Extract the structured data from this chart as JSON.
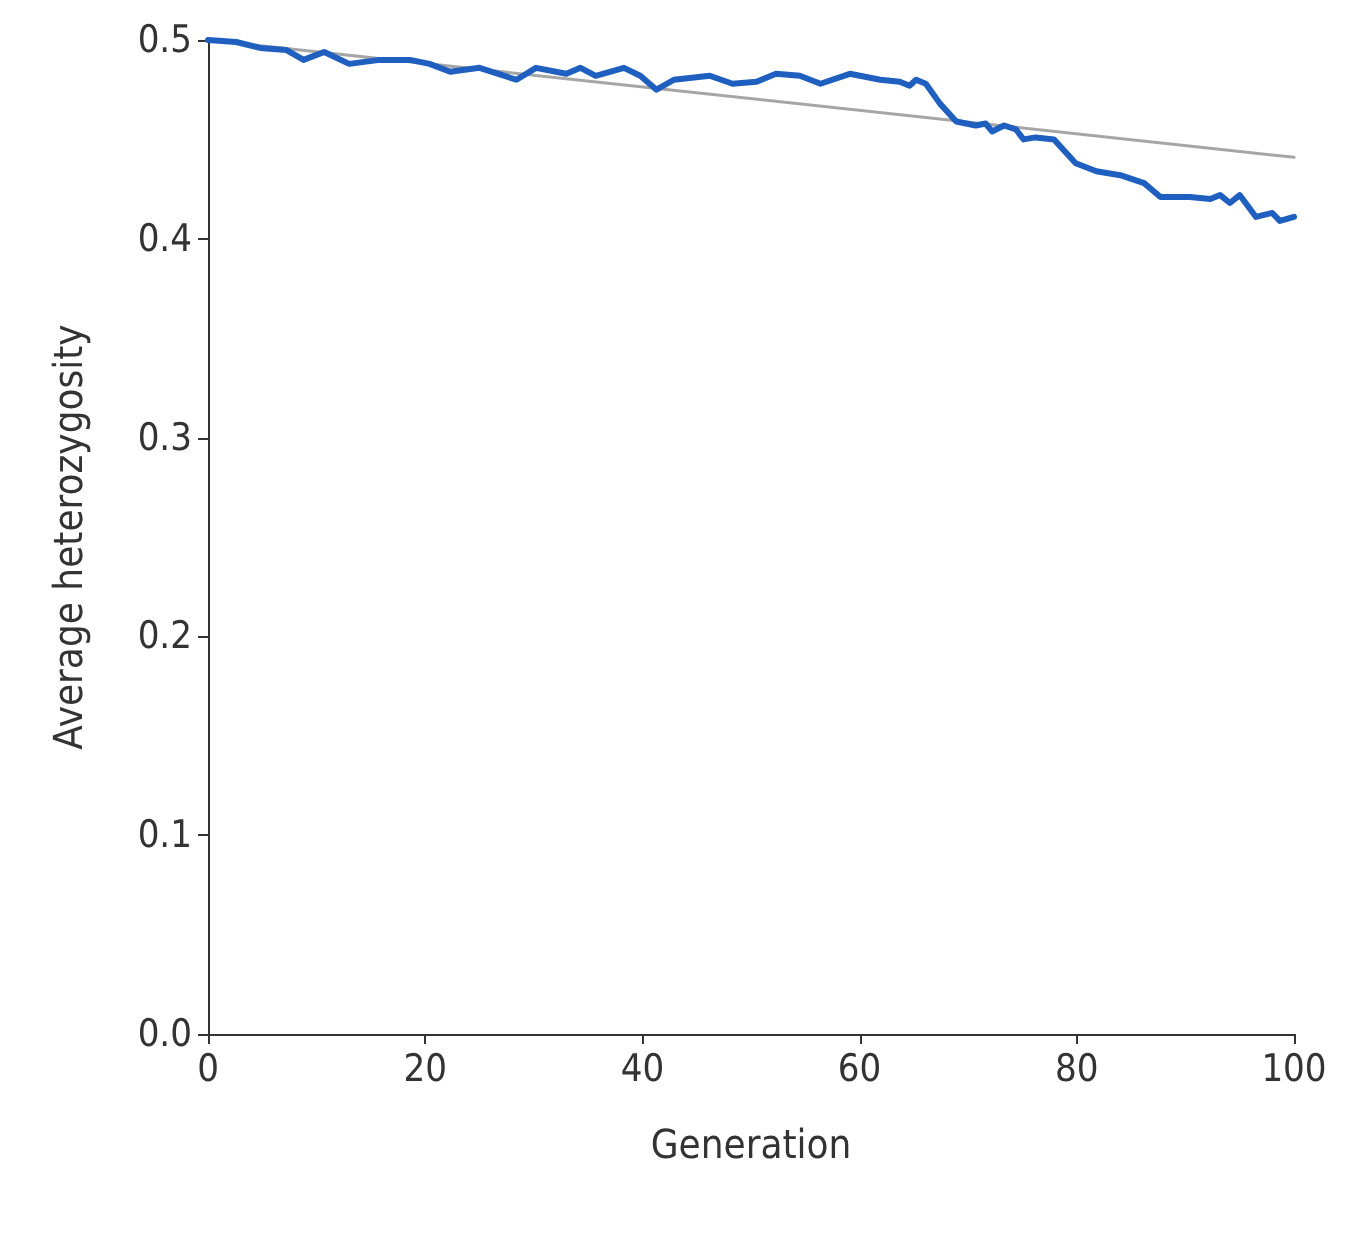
{
  "chart_data": {
    "type": "line",
    "xlabel": "Generation",
    "ylabel": "Average heterozygosity",
    "xlim": [
      0,
      100
    ],
    "xticks": [
      0,
      20,
      40,
      60,
      80,
      100
    ],
    "ylim": [
      0,
      0.5
    ],
    "yticks": [
      {
        "value": 0,
        "label": "0.0"
      },
      {
        "value": 0.1,
        "label": "0.1"
      },
      {
        "value": 0.2,
        "label": "0.2"
      },
      {
        "value": 0.3,
        "label": "0.3"
      },
      {
        "value": 0.4,
        "label": "0.4"
      },
      {
        "value": 0.5,
        "label": "0.5"
      }
    ],
    "grid": false,
    "marker": "none",
    "line_style": "solid",
    "series": [
      {
        "color": "#a6a6a6",
        "x": [
          0,
          100
        ],
        "values": [
          0.5,
          0.441
        ]
      },
      {
        "color": "#1f5fbf",
        "x": [
          0,
          2.6,
          4.8,
          7.2,
          8.8,
          10.7,
          13,
          15.8,
          18.6,
          20.4,
          22.3,
          25,
          28.4,
          30.2,
          33,
          34.3,
          35.7,
          38.3,
          39.8,
          41.3,
          42.9,
          46.2,
          48.3,
          50.5,
          52.3,
          54.5,
          56.4,
          59.1,
          61.9,
          63.7,
          64.6,
          65.2,
          66.1,
          67.4,
          68.9,
          70.7,
          71.6,
          72.2,
          73.3,
          74.4,
          75.1,
          76.2,
          77.9,
          79.9,
          81.8,
          84,
          86.2,
          87.7,
          90.4,
          92.3,
          93.2,
          94.1,
          95,
          96.5,
          98,
          98.7,
          100
        ],
        "values": [
          0.5,
          0.499,
          0.496,
          0.495,
          0.49,
          0.494,
          0.488,
          0.49,
          0.49,
          0.488,
          0.484,
          0.486,
          0.48,
          0.486,
          0.483,
          0.486,
          0.482,
          0.486,
          0.482,
          0.475,
          0.48,
          0.482,
          0.478,
          0.479,
          0.483,
          0.482,
          0.478,
          0.483,
          0.48,
          0.479,
          0.477,
          0.48,
          0.478,
          0.468,
          0.459,
          0.457,
          0.458,
          0.454,
          0.457,
          0.455,
          0.45,
          0.451,
          0.45,
          0.438,
          0.434,
          0.432,
          0.428,
          0.421,
          0.421,
          0.42,
          0.422,
          0.418,
          0.422,
          0.411,
          0.413,
          0.409,
          0.411
        ]
      }
    ]
  }
}
